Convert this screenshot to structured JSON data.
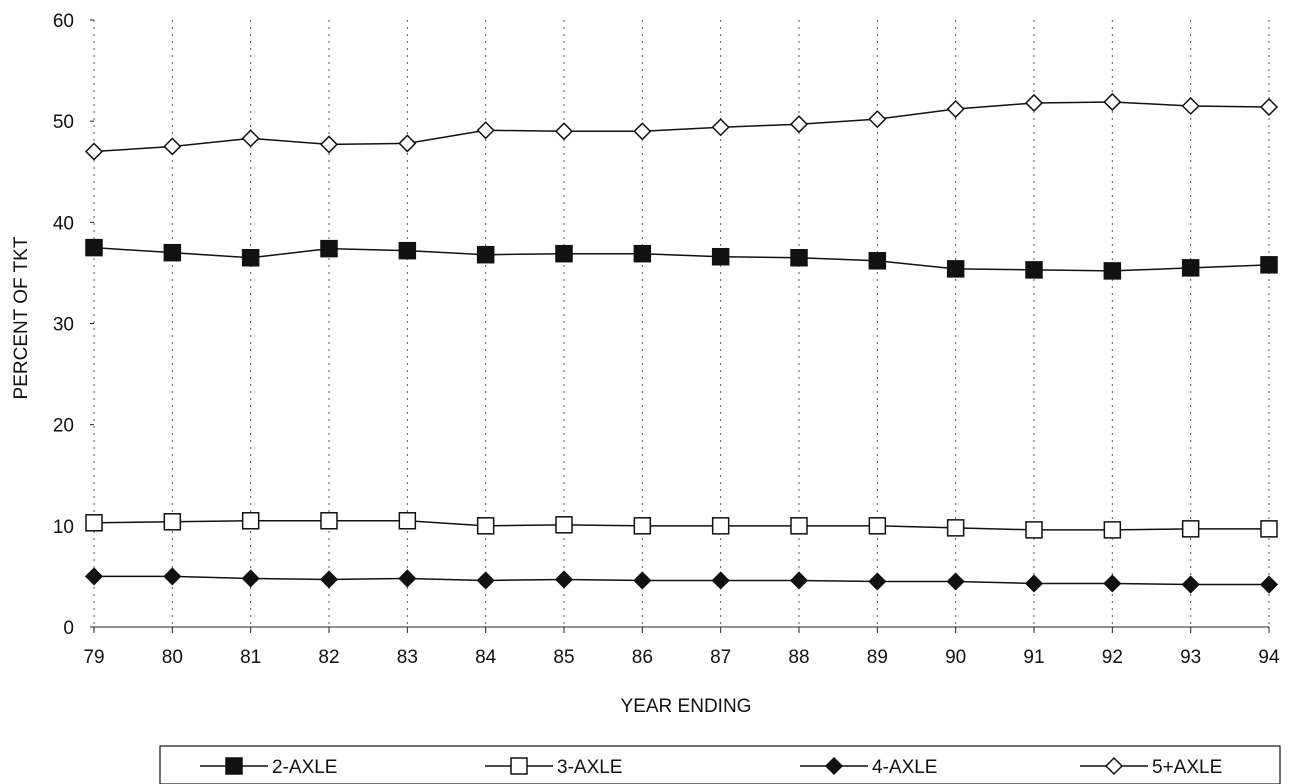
{
  "chart_data": {
    "type": "line",
    "title": "",
    "xlabel": "YEAR ENDING",
    "ylabel": "PERCENT OF TKT",
    "x": [
      "79",
      "80",
      "81",
      "82",
      "83",
      "84",
      "85",
      "86",
      "87",
      "88",
      "89",
      "90",
      "91",
      "92",
      "93",
      "94"
    ],
    "ylim": [
      0,
      60
    ],
    "yticks": [
      "0",
      "10",
      "20",
      "30",
      "40",
      "50",
      "60"
    ],
    "grid": "vertical dotted",
    "legend_position": "bottom",
    "series": [
      {
        "name": "2-AXLE",
        "marker": "square-filled",
        "color": "#111111",
        "values": [
          37.5,
          37.0,
          36.5,
          37.4,
          37.2,
          36.8,
          36.9,
          36.9,
          36.6,
          36.5,
          36.2,
          35.4,
          35.3,
          35.2,
          35.5,
          35.8
        ]
      },
      {
        "name": "3-AXLE",
        "marker": "square-open",
        "color": "#111111",
        "values": [
          10.3,
          10.4,
          10.5,
          10.5,
          10.5,
          10.0,
          10.1,
          10.0,
          10.0,
          10.0,
          10.0,
          9.8,
          9.6,
          9.6,
          9.7,
          9.7
        ]
      },
      {
        "name": "4-AXLE",
        "marker": "diamond-filled",
        "color": "#111111",
        "values": [
          5.0,
          5.0,
          4.8,
          4.7,
          4.8,
          4.6,
          4.7,
          4.6,
          4.6,
          4.6,
          4.5,
          4.5,
          4.3,
          4.3,
          4.2,
          4.2
        ]
      },
      {
        "name": "5+AXLE",
        "marker": "diamond-open",
        "color": "#111111",
        "values": [
          47.0,
          47.5,
          48.3,
          47.7,
          47.8,
          49.1,
          49.0,
          49.0,
          49.4,
          49.7,
          50.2,
          51.2,
          51.8,
          51.9,
          51.5,
          51.4
        ]
      }
    ]
  }
}
